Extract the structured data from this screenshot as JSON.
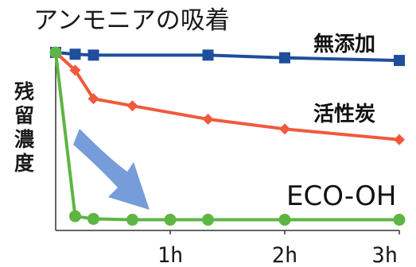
{
  "chart_data": {
    "type": "line",
    "title": "アンモニアの吸着",
    "ylabel": "残留濃度",
    "xlabel": "",
    "x_ticks": [
      {
        "x": 1,
        "label": "1h"
      },
      {
        "x": 2,
        "label": "2h"
      },
      {
        "x": 3,
        "label": "3h"
      }
    ],
    "xlim": [
      0,
      3
    ],
    "ylim": [
      0,
      100
    ],
    "grid": false,
    "legend": "inline labels",
    "series": [
      {
        "name": "無添加",
        "color": "#1f4e9c",
        "marker": "square",
        "x": [
          0,
          0.17,
          0.33,
          1.33,
          2.0,
          3.0
        ],
        "y": [
          100,
          99,
          98.5,
          98.5,
          97,
          95.5
        ]
      },
      {
        "name": "活性炭",
        "color": "#f05a3c",
        "marker": "diamond",
        "x": [
          0,
          0.17,
          0.33,
          0.67,
          1.33,
          2.0,
          3.0
        ],
        "y": [
          100,
          90,
          74,
          70,
          62.5,
          57,
          51
        ]
      },
      {
        "name": "ECO-OH",
        "color": "#5eb543",
        "marker": "circle",
        "x": [
          0,
          0.17,
          0.33,
          0.67,
          1.0,
          1.33,
          2.0,
          3.0
        ],
        "y": [
          100,
          8,
          6.5,
          6,
          6,
          6,
          6,
          6
        ]
      }
    ],
    "annotation": {
      "type": "arrow",
      "color": "#6a94d6",
      "description": "curved downward arrow"
    }
  }
}
